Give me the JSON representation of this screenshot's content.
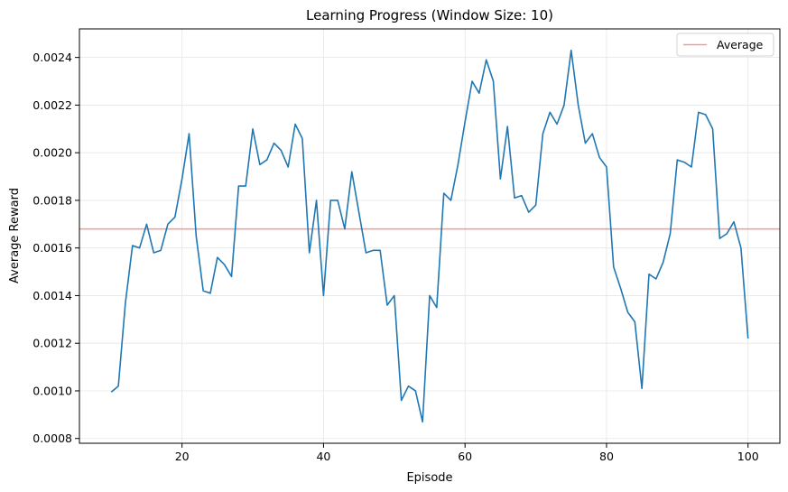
{
  "chart_data": {
    "type": "line",
    "title": "Learning Progress (Window Size: 10)",
    "xlabel": "Episode",
    "ylabel": "Average Reward",
    "xlim": [
      5.5,
      104.5
    ],
    "ylim": [
      0.00078,
      0.00252
    ],
    "xticks": [
      20,
      40,
      60,
      80,
      100
    ],
    "xtick_labels": [
      "20",
      "40",
      "60",
      "80",
      "100"
    ],
    "yticks": [
      0.0008,
      0.001,
      0.0012,
      0.0014,
      0.0016,
      0.0018,
      0.002,
      0.0022,
      0.0024
    ],
    "ytick_labels": [
      "0.0008",
      "0.0010",
      "0.0012",
      "0.0014",
      "0.0016",
      "0.0018",
      "0.0020",
      "0.0022",
      "0.0024"
    ],
    "grid": true,
    "legend_position": "top-right",
    "series": [
      {
        "color": "#1f77b4",
        "x": [
          10,
          11,
          12,
          13,
          14,
          15,
          16,
          17,
          18,
          19,
          20,
          21,
          22,
          23,
          24,
          25,
          26,
          27,
          28,
          29,
          30,
          31,
          32,
          33,
          34,
          35,
          36,
          37,
          38,
          39,
          40,
          41,
          42,
          43,
          44,
          45,
          46,
          47,
          48,
          49,
          50,
          51,
          52,
          53,
          54,
          55,
          56,
          57,
          58,
          59,
          60,
          61,
          62,
          63,
          64,
          65,
          66,
          67,
          68,
          69,
          70,
          71,
          72,
          73,
          74,
          75,
          76,
          77,
          78,
          79,
          80,
          81,
          82,
          83,
          84,
          85,
          86,
          87,
          88,
          89,
          90,
          91,
          92,
          93,
          94,
          95,
          96,
          97,
          98,
          99,
          100
        ],
        "y": [
          0.000995,
          0.00102,
          0.00137,
          0.00161,
          0.0016,
          0.0017,
          0.00158,
          0.00159,
          0.0017,
          0.00173,
          0.00189,
          0.00208,
          0.00165,
          0.00142,
          0.00141,
          0.00156,
          0.00153,
          0.00148,
          0.00186,
          0.00186,
          0.0021,
          0.00195,
          0.00197,
          0.00204,
          0.00201,
          0.00194,
          0.00212,
          0.00206,
          0.00158,
          0.0018,
          0.0014,
          0.0018,
          0.0018,
          0.00168,
          0.00192,
          0.00175,
          0.00158,
          0.00159,
          0.00159,
          0.00136,
          0.0014,
          0.00096,
          0.00102,
          0.001,
          0.00087,
          0.0014,
          0.00135,
          0.00183,
          0.0018,
          0.00195,
          0.00213,
          0.0023,
          0.00225,
          0.00239,
          0.0023,
          0.00189,
          0.00211,
          0.00181,
          0.00182,
          0.00175,
          0.00178,
          0.00208,
          0.00217,
          0.00212,
          0.0022,
          0.00243,
          0.0022,
          0.00204,
          0.00208,
          0.00198,
          0.00194,
          0.00152,
          0.00143,
          0.00133,
          0.00129,
          0.00101,
          0.00149,
          0.00147,
          0.00154,
          0.00166,
          0.00197,
          0.00196,
          0.00194,
          0.00217,
          0.00216,
          0.0021,
          0.00164,
          0.00166,
          0.00171,
          0.0016,
          0.00122
        ]
      },
      {
        "name": "Average",
        "color": "#f08080",
        "constant": 0.00168
      }
    ]
  }
}
